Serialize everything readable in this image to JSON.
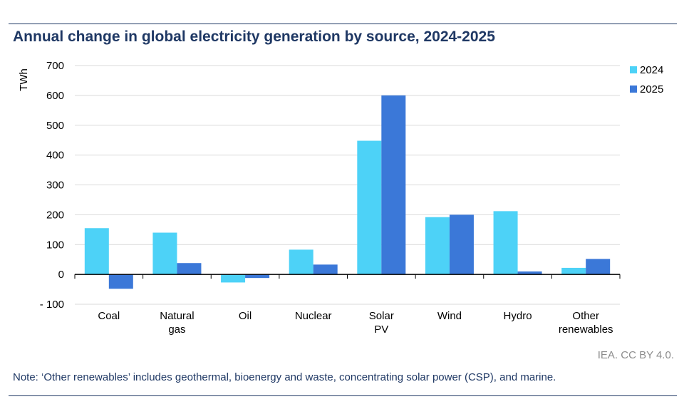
{
  "title": "Annual change in global electricity generation by source, 2024-2025",
  "source": "IEA. CC BY 4.0.",
  "note": "Note: ‘Other renewables’ includes geothermal, bioenergy and waste, concentrating solar power (CSP), and marine.",
  "colors": {
    "title": "#1f3864",
    "series_2024": "#4dd2f7",
    "series_2025": "#3b78d8",
    "grid": "#d9d9d9",
    "axis": "#000000"
  },
  "chart_data": {
    "type": "bar",
    "title": "Annual change in global electricity generation by source, 2024-2025",
    "ylabel": "TWh",
    "xlabel": "",
    "ylim": [
      -100,
      700
    ],
    "yticks": [
      -100,
      0,
      100,
      200,
      300,
      400,
      500,
      600,
      700
    ],
    "ytick_labels": [
      "- 100",
      "0",
      "100",
      "200",
      "300",
      "400",
      "500",
      "600",
      "700"
    ],
    "categories": [
      [
        "Coal"
      ],
      [
        "Natural",
        "gas"
      ],
      [
        "Oil"
      ],
      [
        "Nuclear"
      ],
      [
        "Solar",
        "PV"
      ],
      [
        "Wind"
      ],
      [
        "Hydro"
      ],
      [
        "Other",
        "renewables"
      ]
    ],
    "series": [
      {
        "name": "2024",
        "color": "#4dd2f7",
        "values": [
          155,
          140,
          -27,
          83,
          448,
          192,
          212,
          22
        ]
      },
      {
        "name": "2025",
        "color": "#3b78d8",
        "values": [
          -48,
          38,
          -12,
          33,
          600,
          200,
          10,
          52
        ]
      }
    ],
    "legend": "top-right",
    "grid": true
  }
}
